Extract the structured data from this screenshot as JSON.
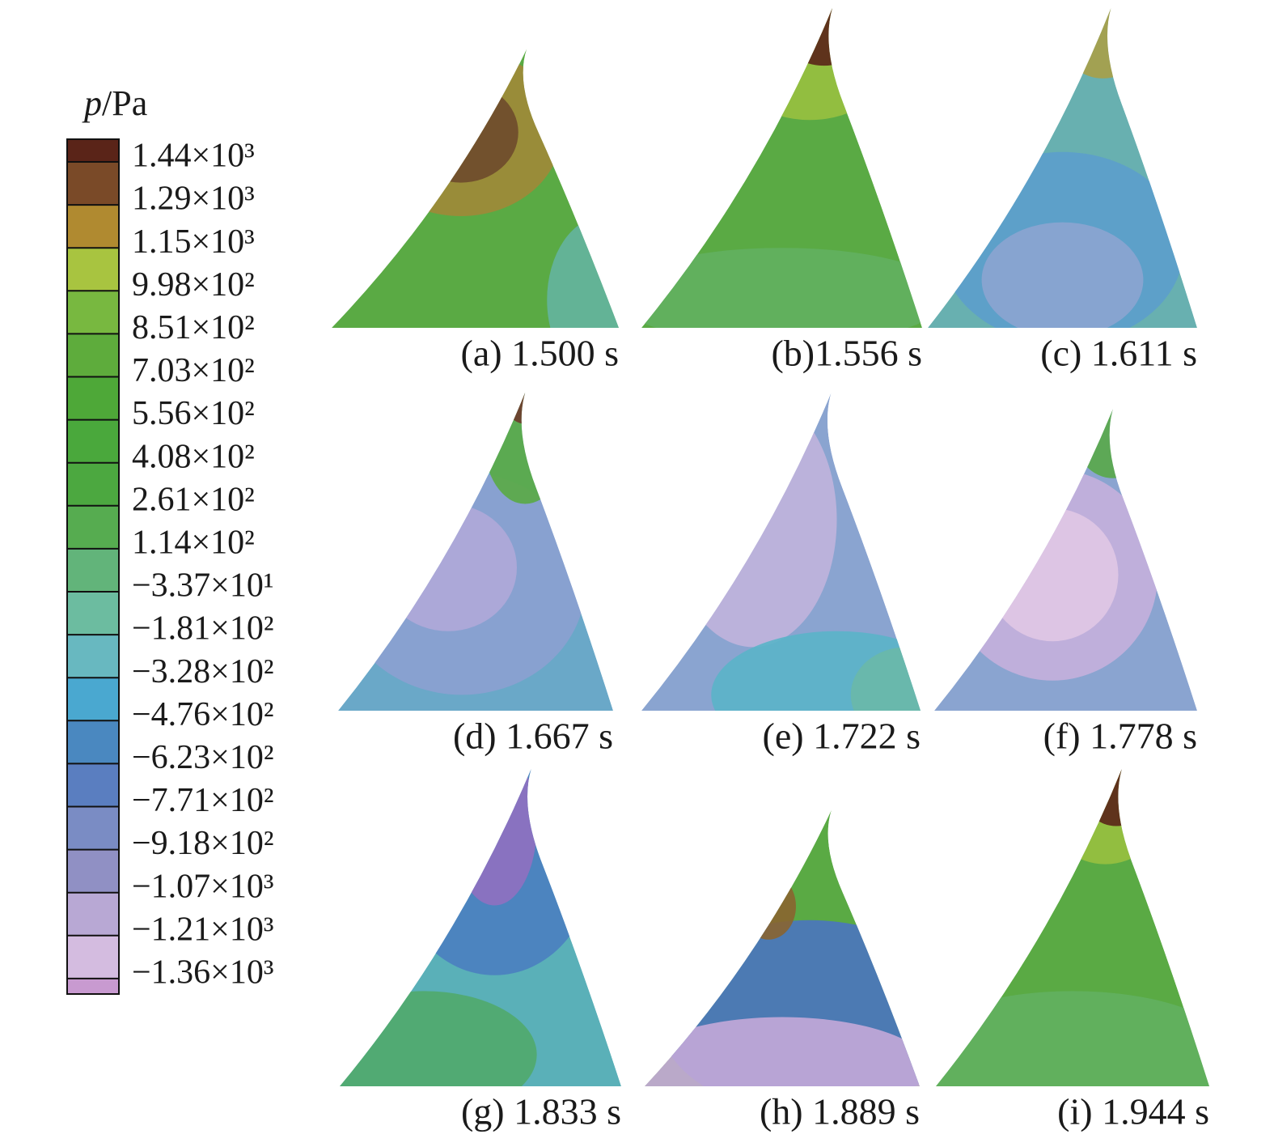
{
  "legend": {
    "symbol": "p",
    "unit": "/Pa",
    "labels": [
      "1.44×10³",
      "1.29×10³",
      "1.15×10³",
      "9.98×10²",
      "8.51×10²",
      "7.03×10²",
      "5.56×10²",
      "4.08×10²",
      "2.61×10²",
      "1.14×10²",
      "−3.37×10¹",
      "−1.81×10²",
      "−3.28×10²",
      "−4.76×10²",
      "−6.23×10²",
      "−7.71×10²",
      "−9.18×10²",
      "−1.07×10³",
      "−1.21×10³",
      "−1.36×10³"
    ],
    "colors": [
      "#5a2418",
      "#7a4a28",
      "#b08a30",
      "#a8c440",
      "#78b840",
      "#5eac3c",
      "#4ea838",
      "#4aa83c",
      "#4ca840",
      "#56ac50",
      "#62b47a",
      "#6cbca0",
      "#68b8c0",
      "#4aa8d0",
      "#4a88c0",
      "#5a7ec0",
      "#7a8cc4",
      "#9090c4",
      "#b8a8d4",
      "#d4bce0",
      "#c89ad0"
    ]
  },
  "panels": [
    {
      "label": "(a) 1.500 s"
    },
    {
      "label": "(b)1.556 s"
    },
    {
      "label": "(c) 1.611 s"
    },
    {
      "label": "(d) 1.667 s"
    },
    {
      "label": "(e) 1.722 s"
    },
    {
      "label": "(f) 1.778 s"
    },
    {
      "label": "(g) 1.833 s"
    },
    {
      "label": "(h) 1.889 s"
    },
    {
      "label": "(i) 1.944 s"
    }
  ]
}
